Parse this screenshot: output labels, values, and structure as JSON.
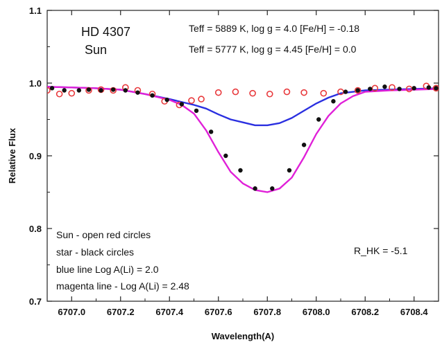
{
  "chart_data": {
    "type": "line",
    "xlabel": "Wavelength(A)",
    "ylabel": "Relative Flux",
    "xlim": [
      6706.9,
      6708.5
    ],
    "ylim": [
      0.7,
      1.1
    ],
    "x_ticks": [
      "6707.0",
      "6707.2",
      "6707.4",
      "6707.6",
      "6707.8",
      "6708.0",
      "6708.2",
      "6708.4"
    ],
    "x_tick_values": [
      6707.0,
      6707.2,
      6707.4,
      6707.6,
      6707.8,
      6708.0,
      6708.2,
      6708.4
    ],
    "y_ticks": [
      "0.7",
      "0.8",
      "0.9",
      "1.0",
      "1.1"
    ],
    "y_tick_values": [
      0.7,
      0.8,
      0.9,
      1.0,
      1.1
    ],
    "annotations": {
      "star_name": "HD 4307",
      "sun_label": "Sun",
      "star_params": "Teff = 5889 K, log g = 4.0  [Fe/H] = -0.18",
      "sun_params": "Teff = 5777 K, log g = 4.45  [Fe/H] = 0.0",
      "legend_sun": "Sun - open red circles",
      "legend_star": "star - black circles",
      "legend_blue": "blue line  Log A(Li) = 2.0",
      "legend_magenta": "magenta line - Log A(Li) = 2.48",
      "rhk": "R_HK = -5.1"
    },
    "series": [
      {
        "kind": "scatter-open",
        "color": "#e8383b",
        "x": [
          6706.9,
          6706.95,
          6707.0,
          6707.07,
          6707.12,
          6707.17,
          6707.22,
          6707.27,
          6707.33,
          6707.38,
          6707.44,
          6707.49,
          6707.53,
          6707.6,
          6707.67,
          6707.74,
          6707.81,
          6707.88,
          6707.95,
          6708.03,
          6708.1,
          6708.17,
          6708.24,
          6708.31,
          6708.38,
          6708.45,
          6708.49
        ],
        "y": [
          0.99,
          0.985,
          0.986,
          0.99,
          0.991,
          0.99,
          0.994,
          0.99,
          0.985,
          0.975,
          0.97,
          0.976,
          0.978,
          0.987,
          0.988,
          0.986,
          0.985,
          0.988,
          0.987,
          0.986,
          0.988,
          0.99,
          0.993,
          0.994,
          0.992,
          0.996,
          0.993
        ]
      },
      {
        "kind": "scatter-filled",
        "color": "#111111",
        "x": [
          6706.92,
          6706.97,
          6707.03,
          6707.07,
          6707.12,
          6707.17,
          6707.22,
          6707.27,
          6707.33,
          6707.39,
          6707.45,
          6707.51,
          6707.57,
          6707.63,
          6707.69,
          6707.75,
          6707.82,
          6707.89,
          6707.95,
          6708.01,
          6708.07,
          6708.12,
          6708.17,
          6708.22,
          6708.28,
          6708.34,
          6708.4,
          6708.46,
          6708.49
        ],
        "y": [
          0.993,
          0.99,
          0.99,
          0.991,
          0.99,
          0.991,
          0.99,
          0.987,
          0.983,
          0.977,
          0.971,
          0.962,
          0.933,
          0.9,
          0.88,
          0.855,
          0.855,
          0.88,
          0.915,
          0.95,
          0.975,
          0.988,
          0.99,
          0.992,
          0.995,
          0.992,
          0.993,
          0.994,
          0.993
        ]
      },
      {
        "kind": "line",
        "color": "#2a2fe0",
        "x": [
          6706.9,
          6707.0,
          6707.1,
          6707.2,
          6707.3,
          6707.4,
          6707.5,
          6707.55,
          6707.6,
          6707.65,
          6707.7,
          6707.75,
          6707.8,
          6707.85,
          6707.9,
          6707.95,
          6708.0,
          6708.05,
          6708.1,
          6708.2,
          6708.3,
          6708.4,
          6708.5
        ],
        "y": [
          0.995,
          0.994,
          0.993,
          0.991,
          0.985,
          0.978,
          0.97,
          0.965,
          0.957,
          0.95,
          0.946,
          0.942,
          0.942,
          0.945,
          0.952,
          0.962,
          0.972,
          0.98,
          0.986,
          0.99,
          0.991,
          0.992,
          0.993
        ]
      },
      {
        "kind": "line",
        "color": "#e020d8",
        "x": [
          6706.9,
          6707.0,
          6707.1,
          6707.2,
          6707.3,
          6707.4,
          6707.45,
          6707.5,
          6707.55,
          6707.6,
          6707.65,
          6707.7,
          6707.75,
          6707.8,
          6707.85,
          6707.9,
          6707.95,
          6708.0,
          6708.05,
          6708.1,
          6708.15,
          6708.2,
          6708.3,
          6708.4,
          6708.5
        ],
        "y": [
          0.995,
          0.994,
          0.993,
          0.991,
          0.985,
          0.977,
          0.97,
          0.958,
          0.935,
          0.905,
          0.878,
          0.862,
          0.853,
          0.85,
          0.855,
          0.87,
          0.898,
          0.93,
          0.955,
          0.972,
          0.982,
          0.988,
          0.99,
          0.991,
          0.992
        ]
      }
    ]
  }
}
